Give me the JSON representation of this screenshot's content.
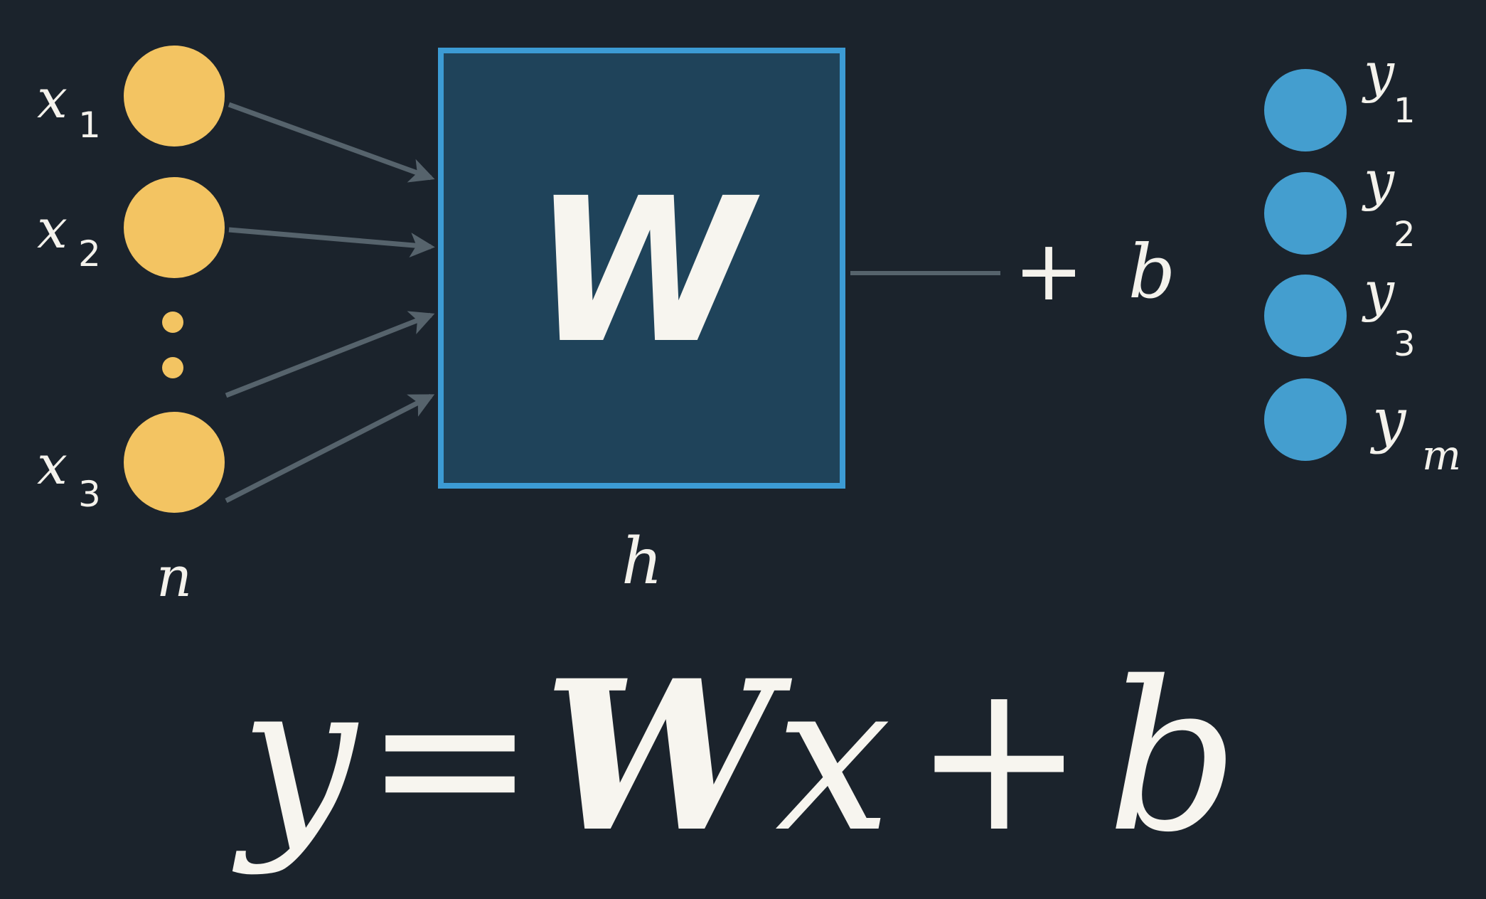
{
  "colors": {
    "background": "#1b232c",
    "input_node": "#f3c462",
    "output_node": "#449ecf",
    "weight_box_fill": "#1f435a",
    "weight_box_border": "#3c9bd4",
    "arrow": "#56636c",
    "text": "#f4f2ec"
  },
  "inputs": {
    "nodes": [
      {
        "symbol": "x",
        "index": "1"
      },
      {
        "symbol": "x",
        "index": "2"
      },
      {
        "symbol": "x",
        "index": "3"
      }
    ],
    "ellipsis_dots": 2,
    "size_label": "n"
  },
  "weights": {
    "symbol": "W",
    "size_label": "h"
  },
  "bias": {
    "plus": "+",
    "symbol": "b"
  },
  "outputs": {
    "nodes": [
      {
        "symbol": "y",
        "index": "1"
      },
      {
        "symbol": "y",
        "index": "2"
      },
      {
        "symbol": "y",
        "index": "3"
      },
      {
        "symbol": "y",
        "index": "m"
      }
    ]
  },
  "equation": {
    "y": "y",
    "eq": "=",
    "W": "W",
    "x": "x",
    "plus": "+",
    "b": "b"
  }
}
